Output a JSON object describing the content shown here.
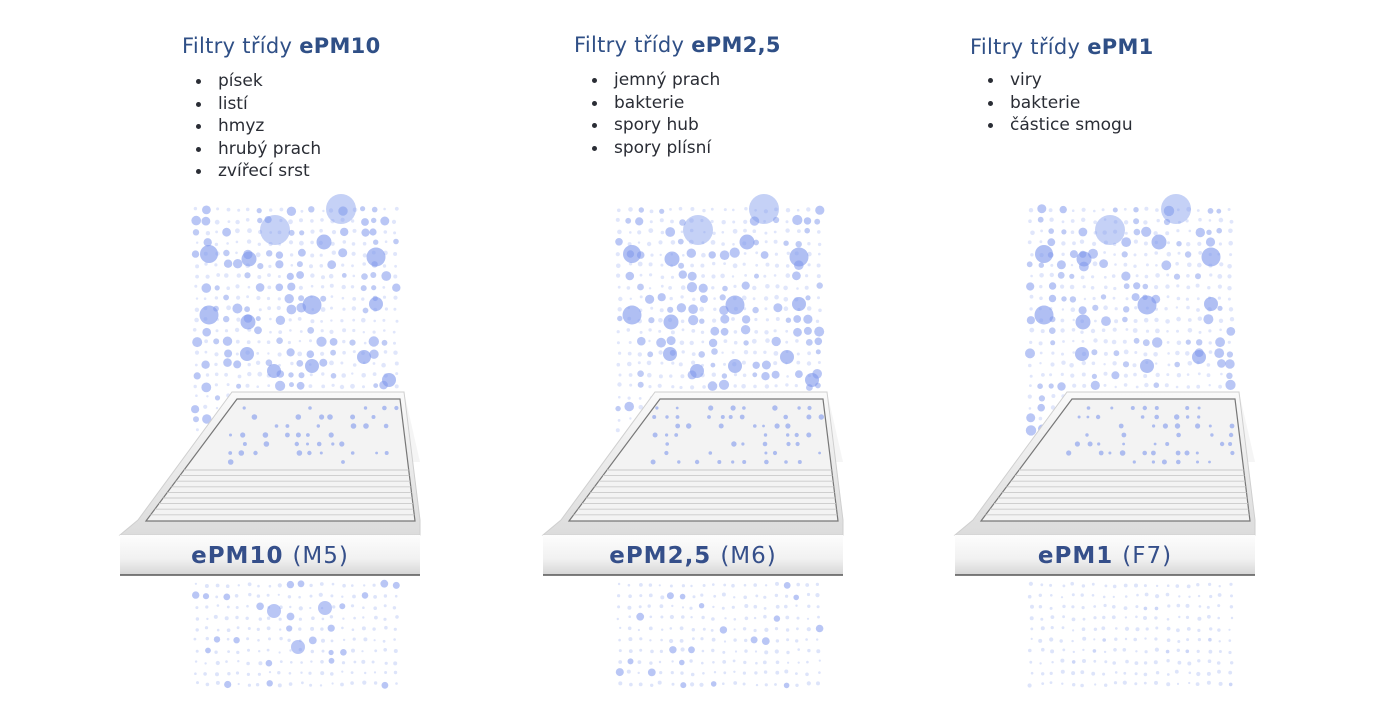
{
  "colors": {
    "heading_text": "#2f4f86",
    "label_text": "#354f8a",
    "list_text": "#2a2d35",
    "particle": "#7f98ec",
    "particle_light": "#c7d2f7"
  },
  "filters": [
    {
      "heading_prefix": "Filtry třídy",
      "heading_class": "ePM10",
      "captures": [
        "písek",
        "listí",
        "hmyz",
        "hrubý prach",
        "zvířecí srst"
      ],
      "label_bold": "ePM10",
      "label_grade": "(M5)"
    },
    {
      "heading_prefix": "Filtry třídy",
      "heading_class": "ePM2,5",
      "captures": [
        "jemný prach",
        "bakterie",
        "spory hub",
        "spory plísní"
      ],
      "label_bold": "ePM2,5",
      "label_grade": "(M6)"
    },
    {
      "heading_prefix": "Filtry třídy",
      "heading_class": "ePM1",
      "captures": [
        "viry",
        "bakterie",
        "částice smogu"
      ],
      "label_bold": "ePM1",
      "label_grade": "(F7)"
    }
  ]
}
